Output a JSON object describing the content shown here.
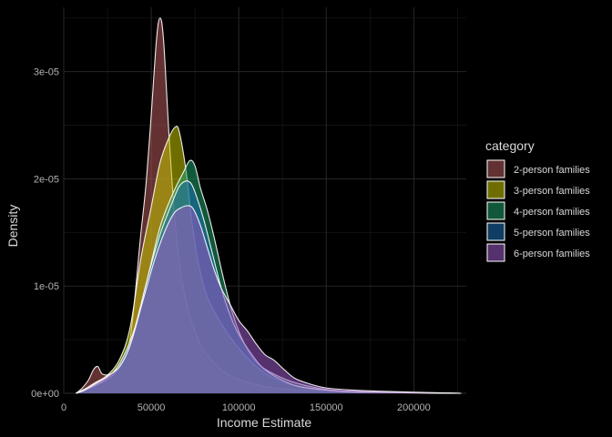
{
  "chart_data": {
    "type": "area",
    "subtype": "density",
    "title": "",
    "xlabel": "Income Estimate",
    "ylabel": "Density",
    "xlim": [
      0,
      230000
    ],
    "ylim": [
      0,
      3.6e-05
    ],
    "x_ticks": [
      {
        "value": 0,
        "label": "0"
      },
      {
        "value": 50000,
        "label": "50000"
      },
      {
        "value": 100000,
        "label": "100000"
      },
      {
        "value": 150000,
        "label": "150000"
      },
      {
        "value": 200000,
        "label": "200000"
      }
    ],
    "y_ticks": [
      {
        "value": 0,
        "label": "0e+00"
      },
      {
        "value": 1e-05,
        "label": "1e-05"
      },
      {
        "value": 2e-05,
        "label": "2e-05"
      },
      {
        "value": 3e-05,
        "label": "3e-05"
      }
    ],
    "grid": true,
    "theme": "dark",
    "legend": {
      "title": "category",
      "position": "right"
    },
    "fill_opacity": 0.55,
    "outline_color": "#ffffff",
    "series": [
      {
        "name": "2-person families",
        "color": "#b4595a",
        "points": [
          [
            7000,
            0
          ],
          [
            10000,
            4e-07
          ],
          [
            14000,
            1.2e-06
          ],
          [
            17000,
            2.2e-06
          ],
          [
            19500,
            2.5e-06
          ],
          [
            22000,
            1.8e-06
          ],
          [
            27000,
            1.8e-06
          ],
          [
            32000,
            2.6e-06
          ],
          [
            38000,
            5.2e-06
          ],
          [
            44000,
            1.48e-05
          ],
          [
            47000,
            1.95e-05
          ],
          [
            50000,
            2.6e-05
          ],
          [
            53000,
            3.3e-05
          ],
          [
            55000,
            3.5e-05
          ],
          [
            57000,
            3.3e-05
          ],
          [
            60000,
            2.45e-05
          ],
          [
            63000,
            1.72e-05
          ],
          [
            66000,
            1.22e-05
          ],
          [
            70000,
            8.5e-06
          ],
          [
            75000,
            5.8e-06
          ],
          [
            80000,
            4e-06
          ],
          [
            90000,
            2.2e-06
          ],
          [
            100000,
            1.3e-06
          ],
          [
            110000,
            8e-07
          ],
          [
            120000,
            5e-07
          ],
          [
            135000,
            3e-07
          ],
          [
            150000,
            2e-07
          ],
          [
            170000,
            1e-07
          ],
          [
            200000,
            5e-08
          ],
          [
            227000,
            0
          ]
        ]
      },
      {
        "name": "3-person families",
        "color": "#c8c800",
        "points": [
          [
            7000,
            0
          ],
          [
            12000,
            4e-07
          ],
          [
            18000,
            1e-06
          ],
          [
            25000,
            1.7e-06
          ],
          [
            32000,
            3.2e-06
          ],
          [
            38000,
            6.2e-06
          ],
          [
            44000,
            1.25e-05
          ],
          [
            50000,
            1.74e-05
          ],
          [
            55000,
            2.15e-05
          ],
          [
            60000,
            2.38e-05
          ],
          [
            63500,
            2.48e-05
          ],
          [
            66000,
            2.44e-05
          ],
          [
            70000,
            2.06e-05
          ],
          [
            73000,
            1.62e-05
          ],
          [
            77000,
            1.21e-05
          ],
          [
            82000,
            9e-06
          ],
          [
            90000,
            6.5e-06
          ],
          [
            100000,
            4.2e-06
          ],
          [
            110000,
            2.5e-06
          ],
          [
            120000,
            1.4e-06
          ],
          [
            130000,
            8e-07
          ],
          [
            145000,
            4e-07
          ],
          [
            160000,
            2e-07
          ],
          [
            180000,
            1e-07
          ],
          [
            227000,
            0
          ]
        ]
      },
      {
        "name": "4-person families",
        "color": "#1f9f6a",
        "points": [
          [
            7000,
            0
          ],
          [
            12000,
            3e-07
          ],
          [
            18000,
            7e-07
          ],
          [
            25000,
            1.3e-06
          ],
          [
            32000,
            2.5e-06
          ],
          [
            40000,
            5.5e-06
          ],
          [
            48000,
            1.08e-05
          ],
          [
            55000,
            1.55e-05
          ],
          [
            62000,
            1.85e-05
          ],
          [
            68000,
            2.05e-05
          ],
          [
            72000,
            2.17e-05
          ],
          [
            75000,
            2.12e-05
          ],
          [
            78000,
            1.92e-05
          ],
          [
            82000,
            1.71e-05
          ],
          [
            86000,
            1.45e-05
          ],
          [
            90000,
            1.16e-05
          ],
          [
            95000,
            8.3e-06
          ],
          [
            100000,
            5.8e-06
          ],
          [
            106000,
            3.8e-06
          ],
          [
            112000,
            2.6e-06
          ],
          [
            120000,
            1.8e-06
          ],
          [
            130000,
            1.1e-06
          ],
          [
            145000,
            5e-07
          ],
          [
            160000,
            2e-07
          ],
          [
            180000,
            1e-07
          ],
          [
            227000,
            0
          ]
        ]
      },
      {
        "name": "5-person families",
        "color": "#1e6fb4",
        "points": [
          [
            7000,
            0
          ],
          [
            12000,
            3e-07
          ],
          [
            18000,
            8e-07
          ],
          [
            25000,
            1.5e-06
          ],
          [
            32000,
            2.8e-06
          ],
          [
            40000,
            5.8e-06
          ],
          [
            48000,
            1.08e-05
          ],
          [
            55000,
            1.48e-05
          ],
          [
            62000,
            1.78e-05
          ],
          [
            66000,
            1.93e-05
          ],
          [
            70000,
            1.98e-05
          ],
          [
            73000,
            1.95e-05
          ],
          [
            76000,
            1.83e-05
          ],
          [
            80000,
            1.62e-05
          ],
          [
            85000,
            1.3e-05
          ],
          [
            90000,
            9.8e-06
          ],
          [
            95000,
            7.3e-06
          ],
          [
            100000,
            5.5e-06
          ],
          [
            108000,
            3.5e-06
          ],
          [
            115000,
            2.2e-06
          ],
          [
            125000,
            1.2e-06
          ],
          [
            135000,
            6e-07
          ],
          [
            150000,
            3e-07
          ],
          [
            170000,
            1e-07
          ],
          [
            227000,
            0
          ]
        ]
      },
      {
        "name": "6-person families",
        "color": "#9b59c7",
        "points": [
          [
            7000,
            0
          ],
          [
            12000,
            3e-07
          ],
          [
            18000,
            9e-07
          ],
          [
            25000,
            1.6e-06
          ],
          [
            32000,
            2.5e-06
          ],
          [
            38000,
            4.5e-06
          ],
          [
            45000,
            8.5e-06
          ],
          [
            52000,
            1.25e-05
          ],
          [
            58000,
            1.52e-05
          ],
          [
            63000,
            1.68e-05
          ],
          [
            67000,
            1.73e-05
          ],
          [
            71000,
            1.75e-05
          ],
          [
            74000,
            1.72e-05
          ],
          [
            78000,
            1.57e-05
          ],
          [
            82000,
            1.36e-05
          ],
          [
            86000,
            1.15e-05
          ],
          [
            90000,
            9.8e-06
          ],
          [
            95000,
            8.3e-06
          ],
          [
            100000,
            6.8e-06
          ],
          [
            105000,
            5.8e-06
          ],
          [
            110000,
            4.6e-06
          ],
          [
            115000,
            3.6e-06
          ],
          [
            120000,
            3.1e-06
          ],
          [
            126000,
            2.2e-06
          ],
          [
            132000,
            1.4e-06
          ],
          [
            140000,
            9e-07
          ],
          [
            150000,
            5e-07
          ],
          [
            165000,
            3e-07
          ],
          [
            180000,
            2e-07
          ],
          [
            200000,
            1e-07
          ],
          [
            227000,
            0
          ]
        ]
      }
    ]
  }
}
